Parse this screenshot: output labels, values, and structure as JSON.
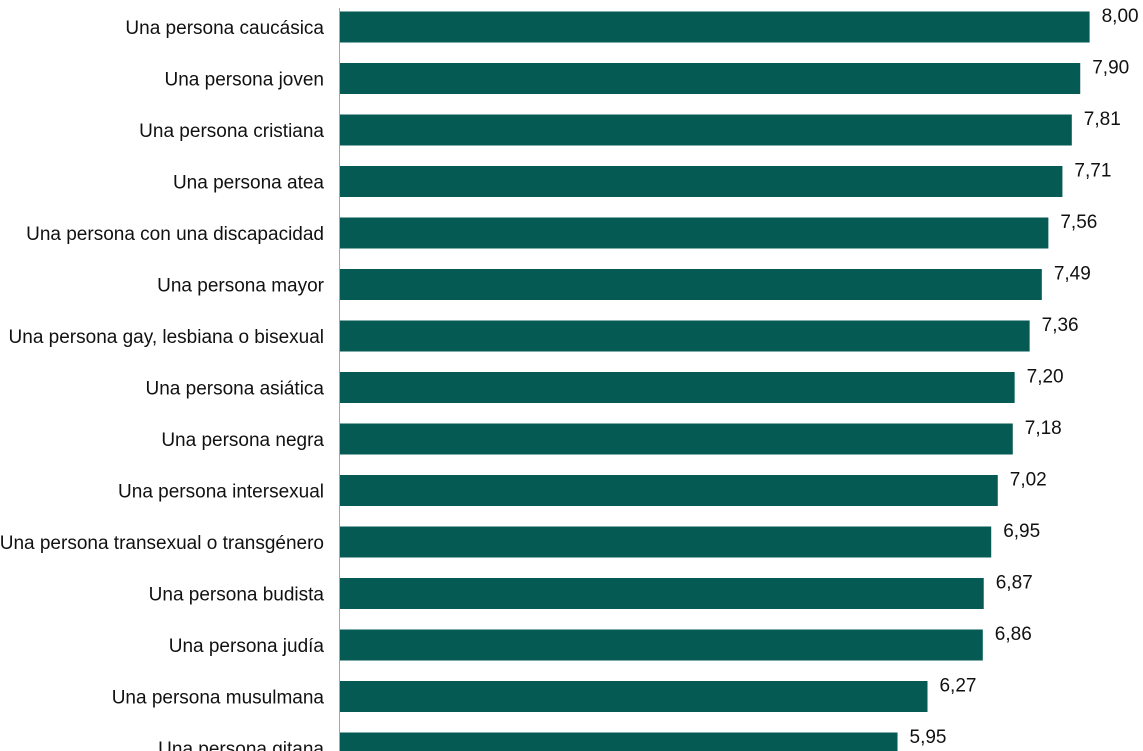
{
  "chart_data": {
    "type": "bar",
    "orientation": "horizontal",
    "categories": [
      "Una persona caucásica",
      "Una persona joven",
      "Una persona cristiana",
      "Una persona atea",
      "Una persona con una discapacidad",
      "Una persona mayor",
      "Una persona gay, lesbiana o bisexual",
      "Una persona asiática",
      "Una persona negra",
      "Una persona intersexual",
      "Una persona transexual o transgénero",
      "Una persona budista",
      "Una persona judía",
      "Una persona musulmana",
      "Una persona gitana"
    ],
    "values": [
      8.0,
      7.9,
      7.81,
      7.71,
      7.56,
      7.49,
      7.36,
      7.2,
      7.18,
      7.02,
      6.95,
      6.87,
      6.86,
      6.27,
      5.95
    ],
    "value_labels": [
      "8,00",
      "7,90",
      "7,81",
      "7,71",
      "7,56",
      "7,49",
      "7,36",
      "7,20",
      "7,18",
      "7,02",
      "6,95",
      "6,87",
      "6,86",
      "6,27",
      "5,95"
    ],
    "title": "",
    "xlabel": "",
    "ylabel": "",
    "xlim": [
      0,
      8
    ],
    "grid": false,
    "legend": "none",
    "bar_color": "#055a53",
    "text_color": "#111111",
    "axis_color": "#a6a6a6"
  }
}
